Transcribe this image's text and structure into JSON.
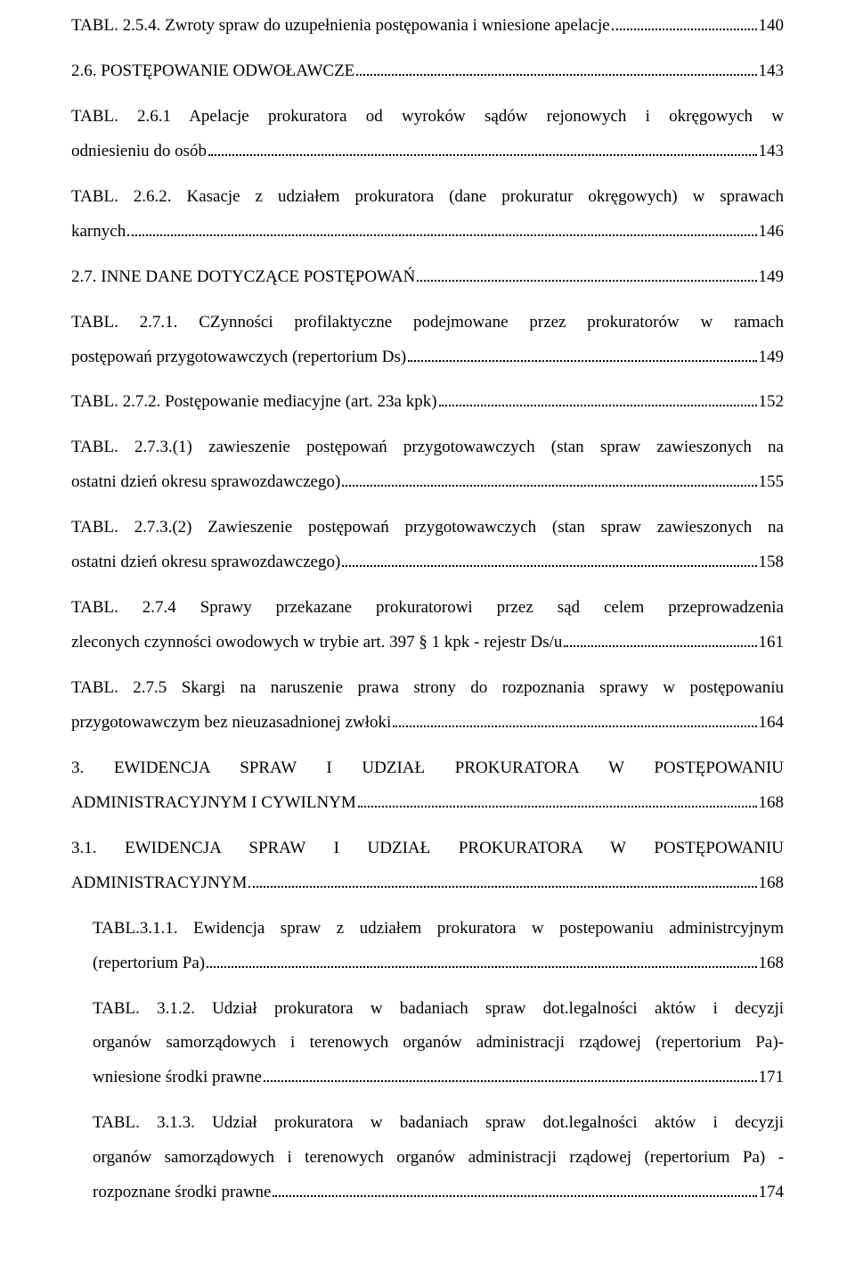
{
  "entries": [
    {
      "indent": false,
      "lines": [
        "TABL. 2.5.4. Zwroty spraw do uzupełnienia postępowania i wniesione apelacje"
      ],
      "page": "140"
    },
    {
      "indent": false,
      "lines": [
        "2.6. POSTĘPOWANIE ODWOŁAWCZE"
      ],
      "page": "143"
    },
    {
      "indent": false,
      "lines": [
        "TABL. 2.6.1 Apelacje prokuratora od wyroków sądów rejonowych i okręgowych w",
        "odniesieniu do osób"
      ],
      "page": "143"
    },
    {
      "indent": false,
      "lines": [
        "TABL. 2.6.2. Kasacje z udziałem prokuratora (dane prokuratur okręgowych) w sprawach",
        "karnych"
      ],
      "page": "146"
    },
    {
      "indent": false,
      "lines": [
        "2.7. INNE DANE DOTYCZĄCE POSTĘPOWAŃ"
      ],
      "page": "149"
    },
    {
      "indent": false,
      "lines": [
        "TABL. 2.7.1. CZynności profilaktyczne podejmowane przez prokuratorów w ramach",
        "postępowań przygotowawczych (repertorium Ds)"
      ],
      "page": "149"
    },
    {
      "indent": false,
      "lines": [
        "TABL. 2.7.2. Postępowanie mediacyjne (art. 23a kpk)"
      ],
      "page": "152"
    },
    {
      "indent": false,
      "lines": [
        "TABL. 2.7.3.(1) zawieszenie postępowań przygotowawczych (stan spraw zawieszonych na",
        "ostatni dzień okresu sprawozdawczego)"
      ],
      "page": "155"
    },
    {
      "indent": false,
      "lines": [
        "TABL. 2.7.3.(2) Zawieszenie postępowań przygotowawczych (stan spraw zawieszonych na",
        "ostatni dzień okresu sprawozdawczego)"
      ],
      "page": "158"
    },
    {
      "indent": false,
      "lines": [
        "TABL. 2.7.4 Sprawy przekazane prokuratorowi przez sąd celem przeprowadzenia",
        "zleconych czynności owodowych w trybie art. 397 § 1 kpk - rejestr Ds/u"
      ],
      "page": "161"
    },
    {
      "indent": false,
      "lines": [
        "TABL. 2.7.5 Skargi na naruszenie prawa strony do rozpoznania sprawy w postępowaniu",
        "przygotowawczym bez nieuzasadnionej zwłoki"
      ],
      "page": "164"
    },
    {
      "indent": false,
      "lines": [
        "3. EWIDENCJA SPRAW I UDZIAŁ PROKURATORA W POSTĘPOWANIU",
        "ADMINISTRACYJNYM I CYWILNYM"
      ],
      "page": "168"
    },
    {
      "indent": false,
      "lines": [
        "3.1. EWIDENCJA SPRAW I UDZIAŁ PROKURATORA W POSTĘPOWANIU",
        "ADMINISTRACYJNYM"
      ],
      "page": "168"
    },
    {
      "indent": true,
      "lines": [
        "TABL.3.1.1. Ewidencja spraw z udziałem prokuratora w postepowaniu administrcyjnym",
        "(repertorium Pa)"
      ],
      "page": "168"
    },
    {
      "indent": true,
      "lines": [
        "TABL. 3.1.2. Udział prokuratora w badaniach spraw dot.legalności aktów i decyzji",
        "organów samorządowych i terenowych organów administracji rządowej (repertorium Pa)-",
        "wniesione środki prawne"
      ],
      "page": "171"
    },
    {
      "indent": true,
      "lines": [
        "TABL. 3.1.3. Udział prokuratora w badaniach spraw dot.legalności aktów i decyzji",
        "organów samorządowych i terenowych organów administracji rządowej (repertorium Pa) -",
        "rozpoznane środki prawne"
      ],
      "page": "174"
    }
  ]
}
